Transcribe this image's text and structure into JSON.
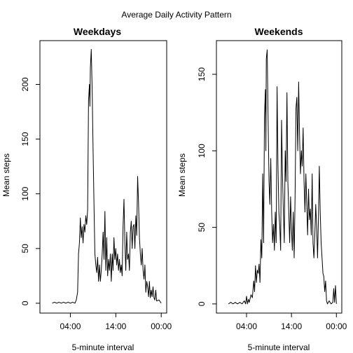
{
  "suptitle": "Average Daily Activity Pattern",
  "chart_data": [
    {
      "type": "line",
      "title": "Weekdays",
      "xlabel": "5-minute interval",
      "ylabel": "Mean steps",
      "x_unit": "hour of day",
      "xlim": [
        -2.7,
        25.2
      ],
      "ylim": [
        -9,
        240
      ],
      "xticks": [
        {
          "value": 4,
          "label": "04:00"
        },
        {
          "value": 14,
          "label": "14:00"
        },
        {
          "value": 24,
          "label": "00:00"
        }
      ],
      "yticks": [
        0,
        50,
        100,
        150,
        200
      ],
      "grid": false,
      "series": [
        {
          "points": [
            [
              0,
              0
            ],
            [
              0.5,
              1
            ],
            [
              1,
              0
            ],
            [
              1.5,
              1
            ],
            [
              2,
              0
            ],
            [
              2.5,
              1
            ],
            [
              3,
              0
            ],
            [
              3.5,
              1
            ],
            [
              4,
              0
            ],
            [
              4.5,
              1
            ],
            [
              5,
              0
            ],
            [
              5.3,
              3
            ],
            [
              5.6,
              10
            ],
            [
              5.8,
              45
            ],
            [
              6,
              55
            ],
            [
              6.2,
              78
            ],
            [
              6.4,
              60
            ],
            [
              6.6,
              70
            ],
            [
              6.8,
              55
            ],
            [
              7,
              72
            ],
            [
              7.2,
              65
            ],
            [
              7.4,
              80
            ],
            [
              7.6,
              72
            ],
            [
              7.8,
              85
            ],
            [
              8,
              185
            ],
            [
              8.2,
              200
            ],
            [
              8.3,
              180
            ],
            [
              8.4,
              215
            ],
            [
              8.6,
              232
            ],
            [
              8.8,
              195
            ],
            [
              9,
              140
            ],
            [
              9.2,
              90
            ],
            [
              9.4,
              45
            ],
            [
              9.6,
              35
            ],
            [
              9.8,
              28
            ],
            [
              10,
              42
            ],
            [
              10.2,
              20
            ],
            [
              10.4,
              35
            ],
            [
              10.6,
              20
            ],
            [
              10.8,
              30
            ],
            [
              11,
              45
            ],
            [
              11.2,
              65
            ],
            [
              11.4,
              40
            ],
            [
              11.6,
              84
            ],
            [
              11.8,
              30
            ],
            [
              12,
              60
            ],
            [
              12.2,
              25
            ],
            [
              12.4,
              40
            ],
            [
              12.6,
              30
            ],
            [
              12.8,
              45
            ],
            [
              13,
              20
            ],
            [
              13.2,
              45
            ],
            [
              13.4,
              30
            ],
            [
              13.6,
              60
            ],
            [
              13.8,
              40
            ],
            [
              14,
              50
            ],
            [
              14.2,
              35
            ],
            [
              14.4,
              45
            ],
            [
              14.6,
              30
            ],
            [
              14.8,
              40
            ],
            [
              15,
              28
            ],
            [
              15.2,
              35
            ],
            [
              15.4,
              25
            ],
            [
              15.6,
              70
            ],
            [
              15.8,
              95
            ],
            [
              16,
              55
            ],
            [
              16.2,
              30
            ],
            [
              16.4,
              65
            ],
            [
              16.6,
              40
            ],
            [
              16.8,
              45
            ],
            [
              17,
              30
            ],
            [
              17.2,
              65
            ],
            [
              17.4,
              75
            ],
            [
              17.6,
              50
            ],
            [
              17.8,
              70
            ],
            [
              18,
              72
            ],
            [
              18.2,
              50
            ],
            [
              18.4,
              80
            ],
            [
              18.6,
              62
            ],
            [
              18.8,
              116
            ],
            [
              19,
              92
            ],
            [
              19.2,
              60
            ],
            [
              19.4,
              45
            ],
            [
              19.6,
              35
            ],
            [
              19.8,
              50
            ],
            [
              20,
              30
            ],
            [
              20.2,
              22
            ],
            [
              20.4,
              35
            ],
            [
              20.6,
              10
            ],
            [
              20.8,
              20
            ],
            [
              21,
              15
            ],
            [
              21.2,
              6
            ],
            [
              21.4,
              20
            ],
            [
              21.6,
              5
            ],
            [
              21.8,
              12
            ],
            [
              22,
              6
            ],
            [
              22.2,
              15
            ],
            [
              22.4,
              5
            ],
            [
              22.6,
              3
            ],
            [
              22.8,
              12
            ],
            [
              23,
              2
            ],
            [
              23.5,
              3
            ],
            [
              24,
              0
            ]
          ]
        }
      ]
    },
    {
      "type": "line",
      "title": "Weekends",
      "xlabel": "5-minute interval",
      "ylabel": "Mean steps",
      "x_unit": "hour of day",
      "xlim": [
        -2.7,
        25.2
      ],
      "ylim": [
        -6,
        172
      ],
      "xticks": [
        {
          "value": 4,
          "label": "04:00"
        },
        {
          "value": 14,
          "label": "14:00"
        },
        {
          "value": 24,
          "label": "00:00"
        }
      ],
      "yticks": [
        0,
        50,
        100,
        150
      ],
      "grid": false,
      "series": [
        {
          "points": [
            [
              0,
              0
            ],
            [
              0.5,
              1
            ],
            [
              1,
              0
            ],
            [
              1.5,
              1
            ],
            [
              2,
              0
            ],
            [
              2.5,
              1
            ],
            [
              3,
              0
            ],
            [
              3.5,
              2
            ],
            [
              3.8,
              0
            ],
            [
              4,
              5
            ],
            [
              4.2,
              0
            ],
            [
              4.4,
              3
            ],
            [
              4.6,
              1
            ],
            [
              5,
              6
            ],
            [
              5.3,
              4
            ],
            [
              5.6,
              15
            ],
            [
              5.8,
              8
            ],
            [
              6,
              25
            ],
            [
              6.2,
              14
            ],
            [
              6.4,
              22
            ],
            [
              6.6,
              20
            ],
            [
              6.8,
              26
            ],
            [
              7,
              14
            ],
            [
              7.2,
              42
            ],
            [
              7.4,
              30
            ],
            [
              7.6,
              85
            ],
            [
              7.8,
              40
            ],
            [
              8,
              122
            ],
            [
              8.2,
              140
            ],
            [
              8.3,
              100
            ],
            [
              8.4,
              160
            ],
            [
              8.6,
              166
            ],
            [
              8.8,
              120
            ],
            [
              9,
              80
            ],
            [
              9.2,
              65
            ],
            [
              9.4,
              95
            ],
            [
              9.6,
              60
            ],
            [
              9.8,
              40
            ],
            [
              10,
              52
            ],
            [
              10.2,
              35
            ],
            [
              10.4,
              60
            ],
            [
              10.6,
              40
            ],
            [
              10.8,
              142
            ],
            [
              11,
              90
            ],
            [
              11.2,
              60
            ],
            [
              11.4,
              50
            ],
            [
              11.6,
              35
            ],
            [
              11.8,
              120
            ],
            [
              12,
              85
            ],
            [
              12.2,
              60
            ],
            [
              12.4,
              40
            ],
            [
              12.6,
              100
            ],
            [
              12.8,
              80
            ],
            [
              13,
              138
            ],
            [
              13.2,
              80
            ],
            [
              13.4,
              60
            ],
            [
              13.6,
              40
            ],
            [
              13.8,
              70
            ],
            [
              14,
              50
            ],
            [
              14.2,
              35
            ],
            [
              14.4,
              60
            ],
            [
              14.6,
              30
            ],
            [
              14.8,
              70
            ],
            [
              15,
              128
            ],
            [
              15.2,
              135
            ],
            [
              15.4,
              100
            ],
            [
              15.6,
              145
            ],
            [
              15.8,
              110
            ],
            [
              16,
              85
            ],
            [
              16.2,
              100
            ],
            [
              16.4,
              90
            ],
            [
              16.6,
              115
            ],
            [
              16.8,
              80
            ],
            [
              17,
              60
            ],
            [
              17.2,
              85
            ],
            [
              17.4,
              65
            ],
            [
              17.6,
              45
            ],
            [
              17.8,
              75
            ],
            [
              18,
              55
            ],
            [
              18.2,
              62
            ],
            [
              18.4,
              45
            ],
            [
              18.6,
              85
            ],
            [
              18.8,
              40
            ],
            [
              19,
              30
            ],
            [
              19.2,
              45
            ],
            [
              19.4,
              65
            ],
            [
              19.6,
              50
            ],
            [
              19.8,
              30
            ],
            [
              20,
              55
            ],
            [
              20.2,
              90
            ],
            [
              20.4,
              60
            ],
            [
              20.6,
              40
            ],
            [
              20.8,
              30
            ],
            [
              21,
              20
            ],
            [
              21.2,
              18
            ],
            [
              21.4,
              8
            ],
            [
              21.6,
              15
            ],
            [
              21.8,
              2
            ],
            [
              22,
              0
            ],
            [
              22.4,
              2
            ],
            [
              22.8,
              0
            ],
            [
              23.2,
              1
            ],
            [
              23.4,
              10
            ],
            [
              23.6,
              1
            ],
            [
              23.8,
              12
            ],
            [
              24,
              0
            ]
          ]
        }
      ]
    }
  ]
}
